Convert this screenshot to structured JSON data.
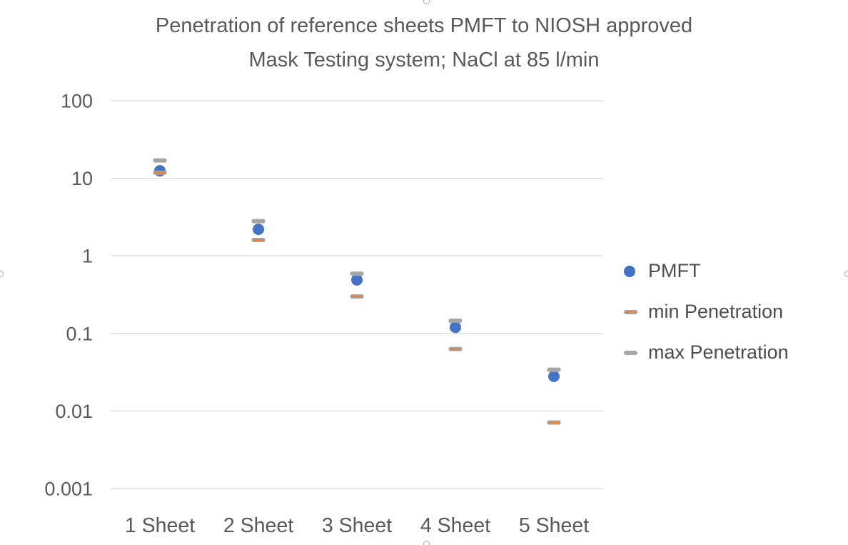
{
  "title": {
    "line1": "Penetration of reference sheets PMFT to NIOSH approved",
    "line2": "Mask Testing system; NaCl at 85 l/min"
  },
  "chart_data": {
    "type": "scatter",
    "title": "Penetration of reference sheets PMFT to NIOSH approved Mask Testing system; NaCl at 85 l/min",
    "y_scale": "log",
    "ylim": [
      0.001,
      100
    ],
    "yticks": [
      "100",
      "10",
      "1",
      "0.1",
      "0.01",
      "0.001"
    ],
    "xlabel": "",
    "ylabel": "",
    "grid": true,
    "legend_position": "right",
    "categories": [
      "1 Sheet",
      "2 Sheet",
      "3 Sheet",
      "4 Sheet",
      "5 Sheet"
    ],
    "series": [
      {
        "name": "PMFT",
        "marker": "circle",
        "color": "#4472C4",
        "values": [
          12.5,
          2.2,
          0.49,
          0.12,
          0.028
        ]
      },
      {
        "name": "min Penetration",
        "marker": "dash-striped",
        "color": "#A6A6A6",
        "stripe_color": "#ED7D31",
        "values": [
          11.8,
          1.6,
          0.3,
          0.063,
          0.0071
        ]
      },
      {
        "name": "max Penetration",
        "marker": "dash",
        "color": "#A6A6A6",
        "values": [
          17,
          2.8,
          0.59,
          0.146,
          0.034
        ]
      }
    ]
  },
  "colors": {
    "pmft_blue": "#4472C4",
    "dash_gray": "#A6A6A6",
    "stripe_orange": "#ED7D31",
    "gridline": "#D9D9D9",
    "title_text": "#595959",
    "axis_text": "#595959",
    "legend_text": "#4d4d4d"
  }
}
